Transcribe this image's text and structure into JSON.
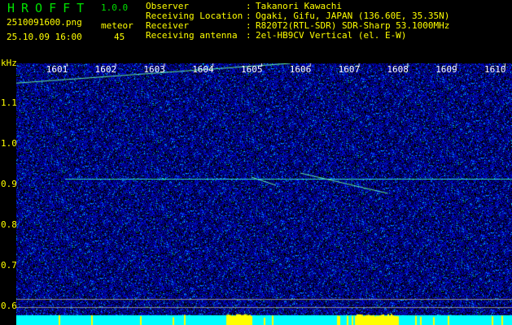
{
  "header": {
    "app_name": "HROFFT",
    "version": "1.0.0",
    "filename": "2510091600.png",
    "datetime": "25.10.09 16:00",
    "meteor_label": "meteor",
    "meteor_count": "45",
    "info": [
      {
        "label": "Observer",
        "value": "Takanori Kawachi"
      },
      {
        "label": "Receiving Location",
        "value": "Ogaki, Gifu, JAPAN (136.60E, 35.35N)"
      },
      {
        "label": "Receiver",
        "value": "R820T2(RTL-SDR) SDR-Sharp 53.1000MHz"
      },
      {
        "label": "Receiving antenna",
        "value": "2el-HB9CV Vertical (el. E-W)"
      }
    ]
  },
  "colors": {
    "text": "#ffff00",
    "title": "#00e000",
    "background": "#000000",
    "noise": "#1020c0",
    "power_bar": "#00ffff",
    "power_spike": "#ffff00"
  },
  "chart_data": {
    "type": "heatmap",
    "ylabel": "kHz",
    "ylim": [
      0.58,
      1.2
    ],
    "yticks": [
      "1.1",
      "1.0",
      "0.9",
      "0.8",
      "0.7",
      "0.6"
    ],
    "xticks": [
      "1601",
      "1602",
      "1603",
      "1604",
      "1605",
      "1606",
      "1607",
      "1608",
      "1609",
      "1610"
    ],
    "carrier_khz": 0.915,
    "traces": [
      {
        "from": [
          "1600",
          1.15
        ],
        "to": [
          "1605.8",
          1.2
        ]
      },
      {
        "from": [
          "1606",
          0.93
        ],
        "to": [
          "1607.8",
          0.88
        ]
      },
      {
        "from": [
          "1605",
          0.92
        ],
        "to": [
          "1605.5",
          0.9
        ]
      }
    ]
  }
}
